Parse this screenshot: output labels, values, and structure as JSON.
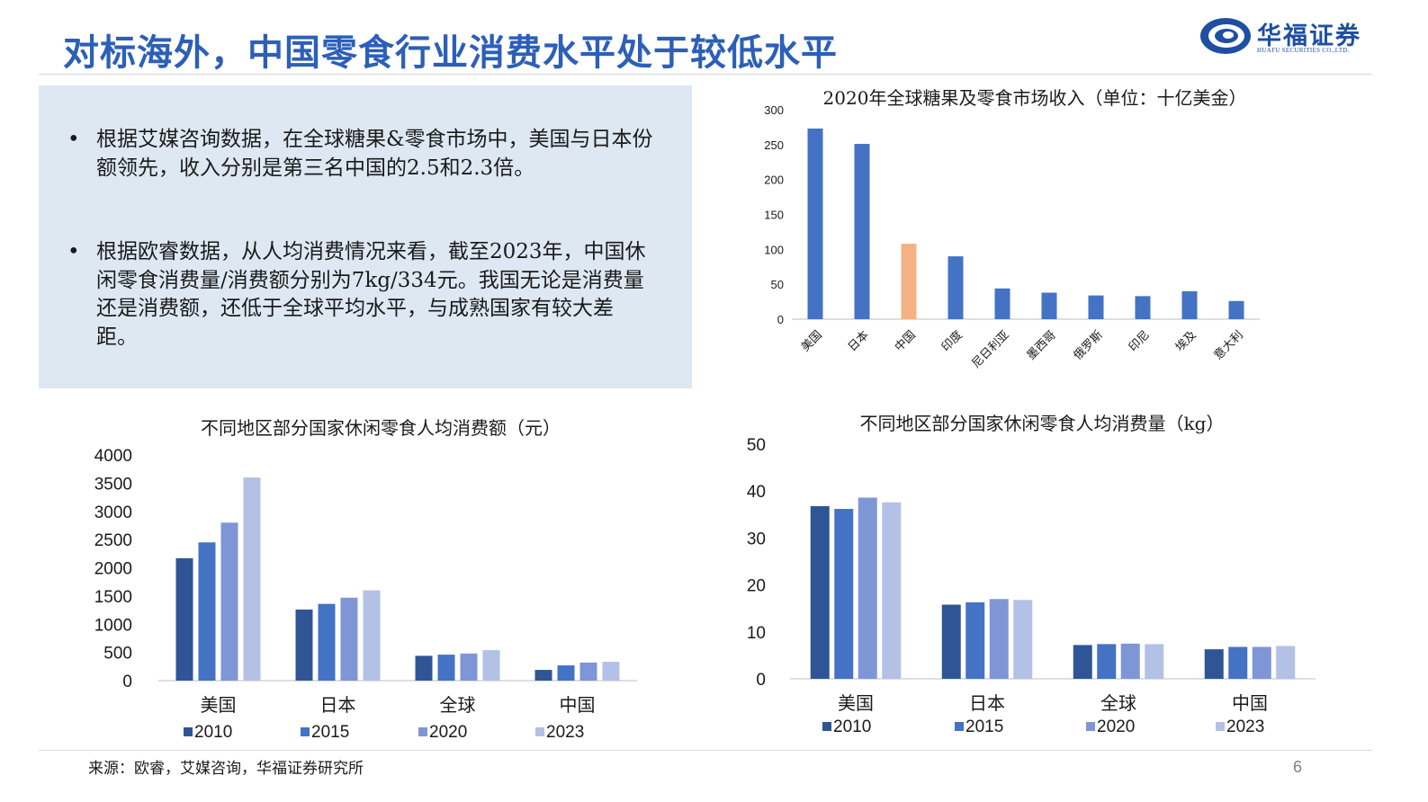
{
  "page_title": "对标海外，中国零食行业消费水平处于较低水平",
  "logo": {
    "name": "华福证券",
    "subtitle": "HUAFU SECURITIES CO.,LTD.",
    "color": "#1e4fa3"
  },
  "bullets": [
    {
      "marker": "•",
      "text": "根据艾媒咨询数据，在全球糖果&零食市场中，美国与日本份额领先，收入分别是第三名中国的2.5和2.3倍。"
    },
    {
      "marker": "•",
      "text": "根据欧睿数据，从人均消费情况来看，截至2023年，中国休闲零食消费量/消费额分别为7kg/334元。我国无论是消费量还是消费额，还低于全球平均水平，与成熟国家有较大差距。"
    }
  ],
  "source": "来源：欧睿，艾媒咨询，华福证券研究所",
  "page_number": "6",
  "chart_data": [
    {
      "type": "bar",
      "title": "2020年全球糖果及零食市场收入（单位：十亿美金）",
      "categories": [
        "美国",
        "日本",
        "中国",
        "印度",
        "尼日利亚",
        "墨西哥",
        "俄罗斯",
        "印尼",
        "埃及",
        "意大利"
      ],
      "values": [
        273,
        251,
        108,
        90,
        44,
        38,
        34,
        33,
        40,
        26
      ],
      "bar_color": "#4472c4",
      "highlight": {
        "category": "中国",
        "color": "#f4b183"
      },
      "ylim": [
        0,
        300
      ],
      "yticks": [
        "0",
        "50",
        "100",
        "150",
        "200",
        "250",
        "300"
      ],
      "grid": false
    },
    {
      "type": "bar",
      "title": "不同地区部分国家休闲零食人均消费额（元）",
      "categories": [
        "美国",
        "日本",
        "全球",
        "中国"
      ],
      "series": [
        {
          "name": "2010",
          "values": [
            2170,
            1260,
            440,
            190
          ],
          "color": "#2f5597"
        },
        {
          "name": "2015",
          "values": [
            2450,
            1360,
            460,
            270
          ],
          "color": "#4472c4"
        },
        {
          "name": "2020",
          "values": [
            2800,
            1470,
            480,
            320
          ],
          "color": "#7f96d6"
        },
        {
          "name": "2023",
          "values": [
            3600,
            1600,
            540,
            334
          ],
          "color": "#b4c1e6"
        }
      ],
      "ylim": [
        0,
        4000
      ],
      "yticks": [
        "0",
        "500",
        "1000",
        "1500",
        "2000",
        "2500",
        "3000",
        "3500",
        "4000"
      ],
      "legend": "bottom",
      "grid": false
    },
    {
      "type": "bar",
      "title": "不同地区部分国家休闲零食人均消费量（kg）",
      "categories": [
        "美国",
        "日本",
        "全球",
        "中国"
      ],
      "series": [
        {
          "name": "2010",
          "values": [
            36.8,
            15.8,
            7.2,
            6.3
          ],
          "color": "#2f5597"
        },
        {
          "name": "2015",
          "values": [
            36.2,
            16.3,
            7.4,
            6.8
          ],
          "color": "#4472c4"
        },
        {
          "name": "2020",
          "values": [
            38.6,
            17.0,
            7.5,
            6.8
          ],
          "color": "#7f96d6"
        },
        {
          "name": "2023",
          "values": [
            37.6,
            16.8,
            7.4,
            7.0
          ],
          "color": "#b4c1e6"
        }
      ],
      "ylim": [
        0,
        50
      ],
      "yticks": [
        "0",
        "10",
        "20",
        "30",
        "40",
        "50"
      ],
      "legend": "bottom",
      "grid": false
    }
  ]
}
